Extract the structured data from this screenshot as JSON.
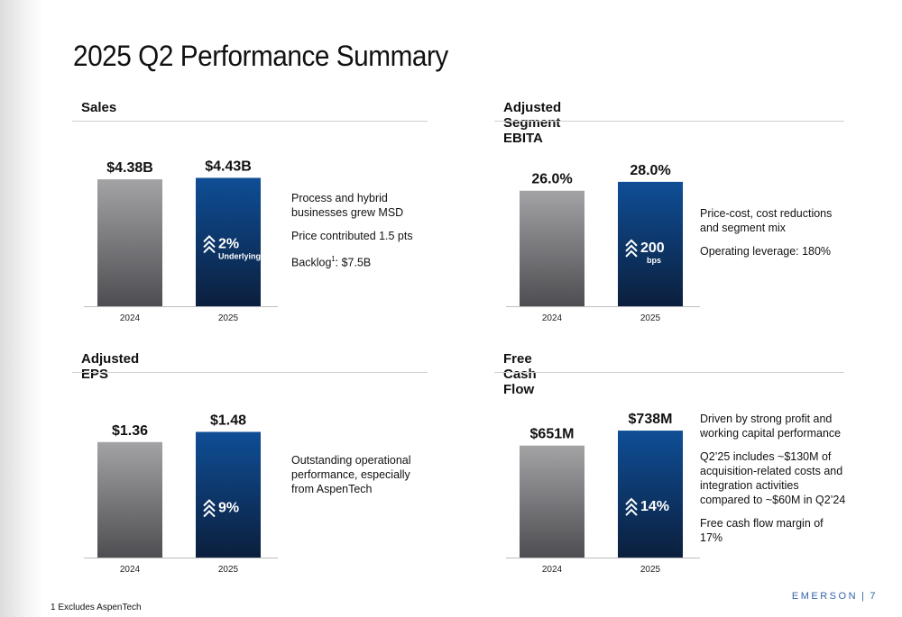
{
  "title": "2025 Q2 Performance Summary",
  "footnote": "1 Excludes AspenTech",
  "brand": {
    "name": "EMERSON",
    "separator": "|",
    "page_number": "7"
  },
  "colors": {
    "bar_2024_top": "#a3a3a6",
    "bar_2024_bottom": "#4e4e52",
    "bar_2025_top": "#0f4e96",
    "bar_2025_bottom": "#0b1f3d",
    "accent_text": "#ffffff",
    "rule": "#d0d0d0"
  },
  "panels": [
    {
      "id": "sales",
      "heading": "Sales",
      "badge": {
        "icon": "double-chevron-up-icon",
        "value": "2%",
        "sub": "Underlying"
      },
      "notes": [
        "Process and hybrid businesses grew MSD",
        "Price contributed 1.5 pts",
        "Backlog",
        "1",
        ": $7.5B"
      ]
    },
    {
      "id": "ebita",
      "heading": "Adjusted Segment EBITA",
      "badge": {
        "icon": "double-chevron-up-icon",
        "value": "200",
        "sub": "bps"
      },
      "notes": [
        "Price-cost, cost reductions and segment mix",
        "Operating leverage: 180%"
      ]
    },
    {
      "id": "eps",
      "heading": "Adjusted EPS",
      "badge": {
        "icon": "double-chevron-up-icon",
        "value": "9%",
        "sub": ""
      },
      "notes": [
        "Outstanding operational performance, especially from AspenTech"
      ]
    },
    {
      "id": "fcf",
      "heading": "Free Cash Flow",
      "badge": {
        "icon": "double-chevron-up-icon",
        "value": "14%",
        "sub": ""
      },
      "notes": [
        "Driven by strong profit and working capital performance",
        "Q2’25 includes ~$130M of acquisition-related costs and integration activities compared to ~$60M in Q2’24",
        "Free cash flow margin of 17%"
      ]
    }
  ],
  "chart_data": [
    {
      "type": "bar",
      "title": "Sales",
      "categories": [
        "2024",
        "2025"
      ],
      "values": [
        4.38,
        4.43
      ],
      "data_labels": [
        "$4.38B",
        "$4.43B"
      ],
      "unit": "$B",
      "ylim": [
        0,
        4.6
      ],
      "grid": false
    },
    {
      "type": "bar",
      "title": "Adjusted Segment EBITA",
      "categories": [
        "2024",
        "2025"
      ],
      "values": [
        26.0,
        28.0
      ],
      "data_labels": [
        "26.0%",
        "28.0%"
      ],
      "unit": "%",
      "ylim": [
        0,
        30
      ],
      "grid": false
    },
    {
      "type": "bar",
      "title": "Adjusted EPS",
      "categories": [
        "2024",
        "2025"
      ],
      "values": [
        1.36,
        1.48
      ],
      "data_labels": [
        "$1.36",
        "$1.48"
      ],
      "unit": "$",
      "ylim": [
        0,
        1.57
      ],
      "grid": false
    },
    {
      "type": "bar",
      "title": "Free Cash Flow",
      "categories": [
        "2024",
        "2025"
      ],
      "values": [
        651,
        738
      ],
      "data_labels": [
        "$651M",
        "$738M"
      ],
      "unit": "$M",
      "ylim": [
        0,
        775
      ],
      "grid": false
    }
  ]
}
